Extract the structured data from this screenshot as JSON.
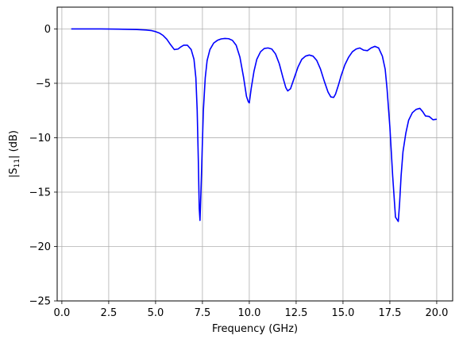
{
  "chart_data": {
    "type": "line",
    "xlabel": "Frequency (GHz)",
    "ylabel_prefix": "|S",
    "ylabel_subscript": "11",
    "ylabel_suffix": "| (dB)",
    "xlim": [
      -0.25,
      20.85
    ],
    "ylim": [
      -25,
      2
    ],
    "x_ticks": [
      0,
      2.5,
      5,
      7.5,
      10,
      12.5,
      15,
      17.5,
      20
    ],
    "x_tick_labels": [
      "0.0",
      "2.5",
      "5.0",
      "7.5",
      "10.0",
      "12.5",
      "15.0",
      "17.5",
      "20.0"
    ],
    "y_ticks": [
      0,
      -5,
      -10,
      -15,
      -20,
      -25
    ],
    "y_tick_labels": [
      "0",
      "−5",
      "−10",
      "−15",
      "−20",
      "−25"
    ],
    "grid": true,
    "line_color": "#0000ff",
    "series": [
      {
        "x": [
          0.5,
          1.0,
          2.0,
          3.0,
          4.0,
          4.5,
          4.8,
          5.0,
          5.2,
          5.4,
          5.6,
          5.8,
          6.0,
          6.2,
          6.35,
          6.5,
          6.7,
          6.9,
          7.05,
          7.15,
          7.22,
          7.28,
          7.33,
          7.37,
          7.42,
          7.48,
          7.55,
          7.65,
          7.75,
          7.9,
          8.1,
          8.3,
          8.5,
          8.7,
          8.9,
          9.1,
          9.3,
          9.5,
          9.7,
          9.85,
          9.95,
          10.0,
          10.1,
          10.25,
          10.4,
          10.6,
          10.8,
          11.0,
          11.2,
          11.4,
          11.6,
          11.8,
          11.95,
          12.05,
          12.2,
          12.4,
          12.6,
          12.8,
          13.0,
          13.2,
          13.4,
          13.6,
          13.8,
          14.0,
          14.2,
          14.35,
          14.5,
          14.6,
          14.75,
          14.9,
          15.1,
          15.3,
          15.5,
          15.7,
          15.9,
          16.1,
          16.3,
          16.5,
          16.7,
          16.9,
          17.1,
          17.25,
          17.35,
          17.5,
          17.65,
          17.8,
          17.95,
          18.02,
          18.1,
          18.2,
          18.35,
          18.5,
          18.7,
          18.9,
          19.1,
          19.25,
          19.4,
          19.6,
          19.8,
          20.0
        ],
        "y": [
          0.0,
          0.0,
          0.0,
          -0.02,
          -0.06,
          -0.1,
          -0.16,
          -0.25,
          -0.38,
          -0.6,
          -0.95,
          -1.45,
          -1.9,
          -1.85,
          -1.65,
          -1.5,
          -1.5,
          -1.9,
          -2.8,
          -4.5,
          -7.5,
          -12.0,
          -16.5,
          -17.6,
          -15.0,
          -11.5,
          -7.5,
          -4.5,
          -2.9,
          -1.9,
          -1.3,
          -1.05,
          -0.92,
          -0.88,
          -0.9,
          -1.05,
          -1.5,
          -2.6,
          -4.5,
          -6.2,
          -6.7,
          -6.8,
          -5.5,
          -3.9,
          -2.8,
          -2.1,
          -1.8,
          -1.75,
          -1.85,
          -2.3,
          -3.2,
          -4.5,
          -5.4,
          -5.7,
          -5.5,
          -4.5,
          -3.5,
          -2.8,
          -2.5,
          -2.4,
          -2.5,
          -2.9,
          -3.7,
          -4.8,
          -5.8,
          -6.25,
          -6.3,
          -6.0,
          -5.2,
          -4.3,
          -3.3,
          -2.6,
          -2.1,
          -1.85,
          -1.75,
          -1.95,
          -2.0,
          -1.75,
          -1.6,
          -1.75,
          -2.5,
          -3.7,
          -5.5,
          -9.0,
          -13.5,
          -17.3,
          -17.7,
          -16.0,
          -13.5,
          -11.3,
          -9.6,
          -8.4,
          -7.7,
          -7.4,
          -7.3,
          -7.6,
          -8.0,
          -8.05,
          -8.35,
          -8.3
        ]
      }
    ]
  }
}
